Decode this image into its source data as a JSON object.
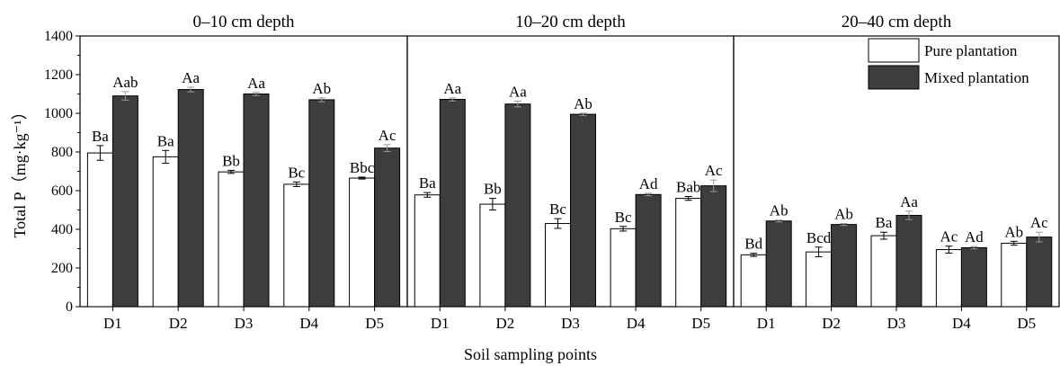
{
  "chart_data": {
    "type": "bar",
    "ylabel": "Total P（mg·kg⁻¹）",
    "xlabel": "Soil sampling points",
    "ylim": [
      0,
      1400
    ],
    "yticks": [
      0,
      200,
      400,
      600,
      800,
      1000,
      1200,
      1400
    ],
    "grid": false,
    "legend": {
      "position": "top-right",
      "entries": [
        {
          "name": "Pure plantation",
          "color": "#ffffff"
        },
        {
          "name": "Mixed plantation",
          "color": "#3d3d3d"
        }
      ]
    },
    "panels": [
      {
        "title": "0–10 cm depth",
        "categories": [
          "D1",
          "D2",
          "D3",
          "D4",
          "D5"
        ],
        "series": [
          {
            "name": "Pure plantation",
            "values": [
              795,
              775,
              697,
              633,
              665
            ],
            "errors": [
              38,
              33,
              8,
              12,
              5
            ],
            "labels": [
              "Ba",
              "Ba",
              "Bb",
              "Bc",
              "Bbc"
            ]
          },
          {
            "name": "Mixed plantation",
            "values": [
              1090,
              1123,
              1100,
              1070,
              820
            ],
            "errors": [
              22,
              12,
              8,
              10,
              18
            ],
            "labels": [
              "Aab",
              "Aa",
              "Aa",
              "Ab",
              "Ac"
            ]
          }
        ]
      },
      {
        "title": "10–20 cm depth",
        "categories": [
          "D1",
          "D2",
          "D3",
          "D4",
          "D5"
        ],
        "series": [
          {
            "name": "Pure plantation",
            "values": [
              578,
              530,
              430,
              403,
              560
            ],
            "errors": [
              12,
              30,
              25,
              12,
              10
            ],
            "labels": [
              "Ba",
              "Bb",
              "Bc",
              "Bc",
              "Bab"
            ]
          },
          {
            "name": "Mixed plantation",
            "values": [
              1072,
              1048,
              995,
              580,
              625
            ],
            "errors": [
              8,
              15,
              6,
              6,
              30
            ],
            "labels": [
              "Aa",
              "Aa",
              "Ab",
              "Ad",
              "Ac"
            ]
          }
        ]
      },
      {
        "title": "20–40 cm depth",
        "categories": [
          "D1",
          "D2",
          "D3",
          "D4",
          "D5"
        ],
        "series": [
          {
            "name": "Pure plantation",
            "values": [
              268,
              283,
              367,
              295,
              328
            ],
            "errors": [
              8,
              25,
              18,
              18,
              10
            ],
            "labels": [
              "Bd",
              "Bcd",
              "Ba",
              "Ac",
              "Ab"
            ]
          },
          {
            "name": "Mixed plantation",
            "values": [
              443,
              425,
              472,
              305,
              360
            ],
            "errors": [
              5,
              5,
              22,
              6,
              25
            ],
            "labels": [
              "Ab",
              "Ab",
              "Aa",
              "Ad",
              "Ac"
            ]
          }
        ]
      }
    ]
  }
}
